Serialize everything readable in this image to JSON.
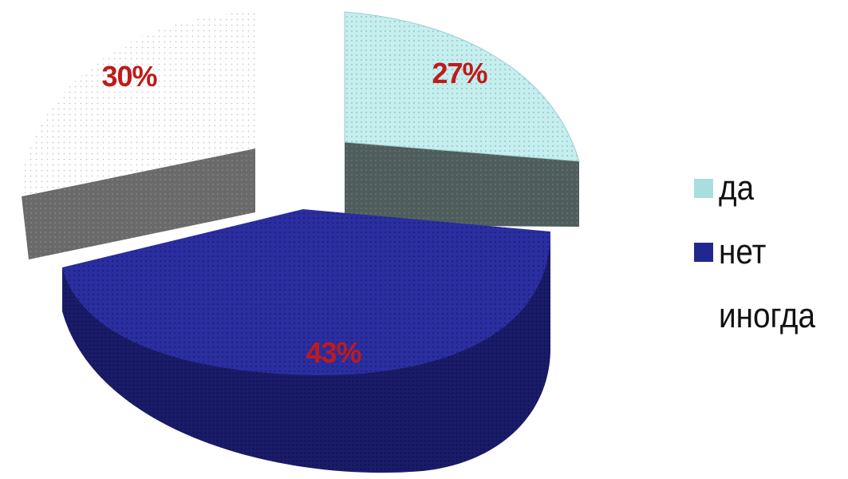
{
  "chart_data": {
    "type": "pie",
    "style": "3d-exploded",
    "categories": [
      "да",
      "нет",
      "иногда"
    ],
    "values": [
      27,
      43,
      30
    ],
    "labels": [
      "27%",
      "43%",
      "30%"
    ],
    "colors": [
      "#c6eeee",
      "#2b2ea0",
      "#ffffff"
    ],
    "label_color": "#c01a1a",
    "legend": {
      "position": "right",
      "items": [
        {
          "label": "да",
          "color": "#a9dede"
        },
        {
          "label": "нет",
          "color": "#22278f"
        },
        {
          "label": "иногда",
          "color": "#ffffff"
        }
      ]
    }
  }
}
